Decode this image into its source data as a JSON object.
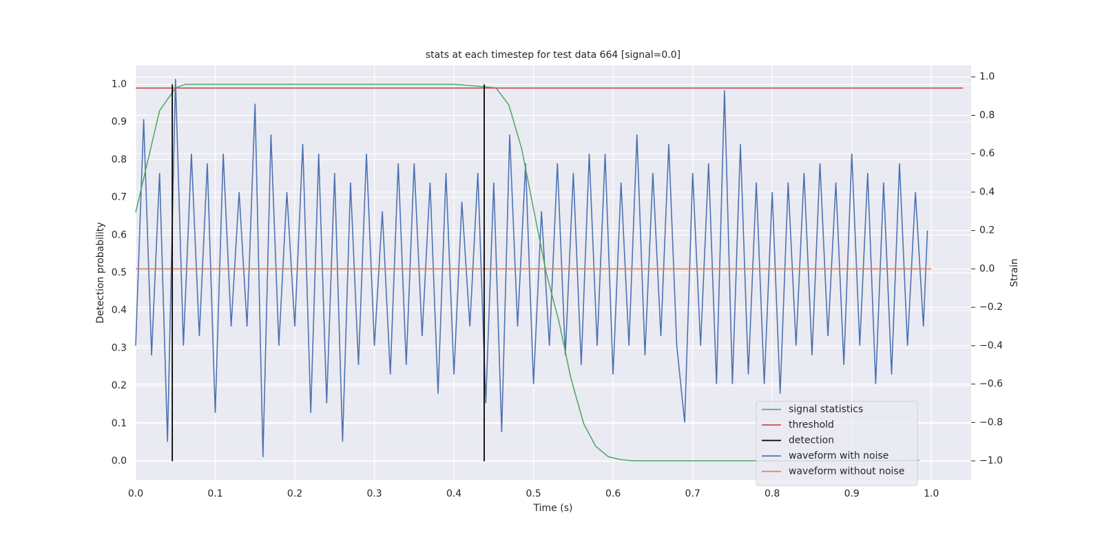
{
  "chart_data": {
    "type": "line",
    "title": "stats at each timestep for test data 664 [signal=0.0]",
    "xlabel": "Time (s)",
    "ylabel": "Detection probability",
    "y2label": "Strain",
    "xlim": [
      0,
      1.05
    ],
    "ylim": [
      -0.05,
      1.05
    ],
    "y2lim": [
      -1.1,
      1.06
    ],
    "xticks": [
      {
        "value": 0,
        "label": "0.0"
      },
      0.1,
      0.2,
      0.3,
      0.4,
      0.5,
      0.6,
      0.7,
      0.8,
      0.9,
      {
        "value": 1,
        "label": "1.0"
      }
    ],
    "yticks": [
      {
        "value": 0,
        "label": "0.0"
      },
      0.1,
      0.2,
      0.3,
      0.4,
      0.5,
      0.6,
      0.7,
      0.8,
      0.9,
      {
        "value": 1,
        "label": "1.0"
      }
    ],
    "y2ticks": [
      {
        "value": -1,
        "label": "−1.0"
      },
      {
        "value": -0.8,
        "label": "−0.8"
      },
      {
        "value": -0.6,
        "label": "−0.6"
      },
      {
        "value": -0.4,
        "label": "−0.4"
      },
      {
        "value": -0.2,
        "label": "−0.2"
      },
      {
        "value": 0,
        "label": "0.0"
      },
      0.2,
      0.4,
      0.6,
      0.8,
      {
        "value": 1,
        "label": "1.0"
      }
    ],
    "grid": true,
    "legend": "lower right",
    "series": [
      {
        "name": "signal statistics",
        "color": "#55a868",
        "axis": "y",
        "x": [
          0,
          0.03,
          0.05,
          0.062,
          0.08,
          0.2,
          0.3,
          0.4,
          0.42,
          0.453,
          0.469,
          0.485,
          0.5,
          0.516,
          0.532,
          0.547,
          0.563,
          0.578,
          0.594,
          0.61,
          0.625,
          0.7,
          0.8,
          0.9,
          0.985
        ],
        "values": [
          0.66,
          0.93,
          0.99,
          1.0,
          1.0,
          1.0,
          1.0,
          1.0,
          0.997,
          0.99,
          0.945,
          0.83,
          0.67,
          0.5,
          0.37,
          0.22,
          0.1,
          0.04,
          0.012,
          0.004,
          0.001,
          0.001,
          0.001,
          0.001,
          0.002
        ]
      },
      {
        "name": "threshold",
        "color": "#c44e52",
        "axis": "y",
        "x": [
          0,
          1.04
        ],
        "values": [
          0.99,
          0.99
        ]
      },
      {
        "name": "detection",
        "color": "#000000",
        "axis": "y",
        "type": "vlines",
        "x": [
          0.046,
          0.438
        ],
        "ymin": [
          0,
          0
        ],
        "ymax": [
          1,
          1
        ]
      },
      {
        "name": "waveform with noise",
        "color": "#4c72b0",
        "axis": "y2",
        "x": [
          0,
          0.01,
          0.02,
          0.03,
          0.04,
          0.05,
          0.06,
          0.07,
          0.08,
          0.09,
          0.1,
          0.11,
          0.12,
          0.13,
          0.14,
          0.15,
          0.16,
          0.17,
          0.18,
          0.19,
          0.2,
          0.21,
          0.22,
          0.23,
          0.24,
          0.25,
          0.26,
          0.27,
          0.28,
          0.29,
          0.3,
          0.31,
          0.32,
          0.33,
          0.34,
          0.35,
          0.36,
          0.37,
          0.38,
          0.39,
          0.4,
          0.41,
          0.42,
          0.43,
          0.44,
          0.45,
          0.46,
          0.47,
          0.48,
          0.49,
          0.5,
          0.51,
          0.52,
          0.53,
          0.54,
          0.55,
          0.56,
          0.57,
          0.58,
          0.59,
          0.6,
          0.61,
          0.62,
          0.63,
          0.64,
          0.65,
          0.66,
          0.67,
          0.68,
          0.69,
          0.7,
          0.71,
          0.72,
          0.73,
          0.74,
          0.75,
          0.76,
          0.77,
          0.78,
          0.79,
          0.8,
          0.81,
          0.82,
          0.83,
          0.84,
          0.85,
          0.86,
          0.87,
          0.88,
          0.89,
          0.9,
          0.91,
          0.92,
          0.93,
          0.94,
          0.95,
          0.96,
          0.97,
          0.98,
          0.99,
          0.995
        ],
        "values": [
          -0.4,
          0.78,
          -0.45,
          0.5,
          -0.9,
          0.99,
          -0.4,
          0.6,
          -0.35,
          0.55,
          -0.75,
          0.6,
          -0.3,
          0.4,
          -0.3,
          0.86,
          -0.98,
          0.7,
          -0.4,
          0.4,
          -0.3,
          0.65,
          -0.75,
          0.6,
          -0.7,
          0.5,
          -0.9,
          0.45,
          -0.5,
          0.6,
          -0.4,
          0.3,
          -0.55,
          0.55,
          -0.5,
          0.55,
          -0.35,
          0.45,
          -0.65,
          0.5,
          -0.55,
          0.35,
          -0.3,
          0.5,
          -0.7,
          0.45,
          -0.85,
          0.7,
          -0.3,
          0.55,
          -0.6,
          0.3,
          -0.4,
          0.55,
          -0.45,
          0.5,
          -0.5,
          0.6,
          -0.4,
          0.6,
          -0.55,
          0.45,
          -0.4,
          0.7,
          -0.45,
          0.5,
          -0.35,
          0.65,
          -0.4,
          -0.8,
          0.5,
          -0.4,
          0.55,
          -0.6,
          0.93,
          -0.6,
          0.65,
          -0.55,
          0.45,
          -0.6,
          0.4,
          -0.65,
          0.45,
          -0.4,
          0.5,
          -0.45,
          0.55,
          -0.35,
          0.45,
          -0.5,
          0.6,
          -0.4,
          0.5,
          -0.6,
          0.45,
          -0.55,
          0.55,
          -0.4,
          0.4,
          -0.3,
          0.2
        ]
      },
      {
        "name": "waveform without noise",
        "color": "#dd8452",
        "axis": "y2",
        "x": [
          0,
          1
        ],
        "values": [
          0,
          0
        ]
      }
    ]
  }
}
